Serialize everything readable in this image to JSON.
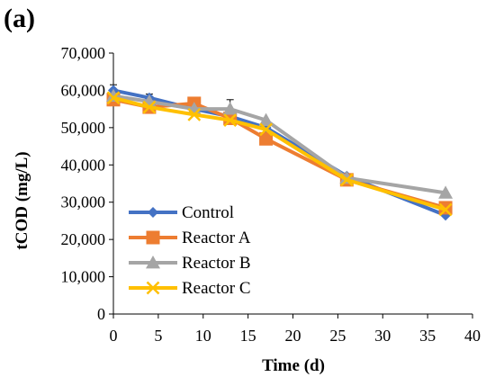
{
  "panel_label": "(a)",
  "chart_data": {
    "type": "line",
    "xlabel": "Time (d)",
    "ylabel": "tCOD (mg/L)",
    "xlim": [
      0,
      40
    ],
    "ylim": [
      0,
      70000
    ],
    "x_ticks": [
      0,
      5,
      10,
      15,
      20,
      25,
      30,
      35,
      40
    ],
    "y_ticks": [
      0,
      10000,
      20000,
      30000,
      40000,
      50000,
      60000,
      70000
    ],
    "x_tick_labels": [
      "0",
      "5",
      "10",
      "15",
      "20",
      "25",
      "30",
      "35",
      "40"
    ],
    "y_tick_labels": [
      "0",
      "10,000",
      "20,000",
      "30,000",
      "40,000",
      "50,000",
      "60,000",
      "70,000"
    ],
    "x": [
      0,
      4,
      9,
      13,
      17,
      26,
      37
    ],
    "legend_position": "bottom-left inside plot",
    "grid": false,
    "series": [
      {
        "name": "Control",
        "color": "#4472C4",
        "marker": "diamond",
        "values": [
          60000,
          58000,
          55000,
          53000,
          50000,
          37000,
          26500
        ],
        "error": [
          1500,
          1000,
          0,
          0,
          0,
          0,
          0
        ]
      },
      {
        "name": "Reactor A",
        "color": "#ED7D31",
        "marker": "square",
        "values": [
          57500,
          55500,
          56500,
          52500,
          47000,
          36000,
          28500
        ],
        "error": [
          0,
          0,
          0,
          0,
          0,
          0,
          0
        ]
      },
      {
        "name": "Reactor B",
        "color": "#A5A5A5",
        "marker": "triangle",
        "values": [
          58500,
          57000,
          55000,
          55000,
          52000,
          36500,
          32500
        ],
        "error": [
          0,
          0,
          0,
          2500,
          0,
          0,
          0
        ]
      },
      {
        "name": "Reactor C",
        "color": "#FFC000",
        "marker": "x",
        "values": [
          58000,
          55500,
          53500,
          52000,
          49500,
          36000,
          28000
        ],
        "error": [
          0,
          0,
          0,
          0,
          0,
          0,
          0
        ]
      }
    ]
  }
}
